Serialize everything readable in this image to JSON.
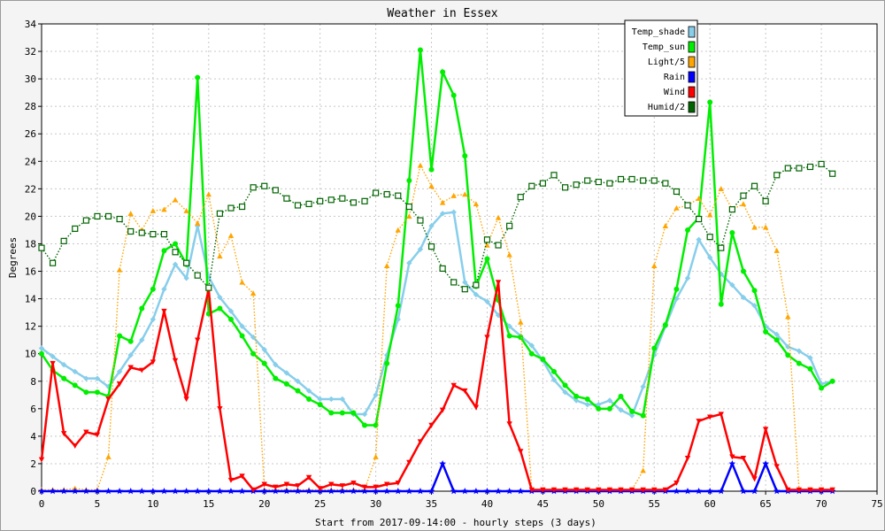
{
  "chart_data": {
    "type": "line",
    "title": "Weather in Essex",
    "xlabel": "Start from 2017-09-14:00 - hourly steps (3 days)",
    "ylabel": "Degrees",
    "xlim": [
      0,
      75
    ],
    "ylim": [
      0,
      34
    ],
    "x_ticks": [
      0,
      5,
      10,
      15,
      20,
      25,
      30,
      35,
      40,
      45,
      50,
      55,
      60,
      65,
      70,
      75
    ],
    "y_ticks": [
      0,
      2,
      4,
      6,
      8,
      10,
      12,
      14,
      16,
      18,
      20,
      22,
      24,
      26,
      28,
      30,
      32,
      34
    ],
    "grid": true,
    "legend_position": "top-right",
    "series": [
      {
        "name": "Temp_shade",
        "color": "#87ceeb",
        "marker": "diamond",
        "style": "solid",
        "values": [
          10.4,
          9.8,
          9.2,
          8.7,
          8.2,
          8.2,
          7.6,
          8.7,
          9.9,
          11.0,
          12.5,
          14.7,
          16.5,
          15.5,
          19.3,
          15.6,
          14.1,
          13.1,
          12.0,
          11.2,
          10.3,
          9.2,
          8.6,
          8.0,
          7.3,
          6.7,
          6.7,
          6.7,
          5.6,
          5.6,
          7.0,
          9.9,
          12.5,
          16.6,
          17.6,
          19.3,
          20.2,
          20.3,
          15.2,
          14.3,
          13.8,
          12.8,
          12.0,
          11.3,
          10.6,
          9.5,
          8.1,
          7.2,
          6.6,
          6.3,
          6.3,
          6.6,
          5.9,
          5.5,
          7.6,
          9.9,
          12.0,
          14.0,
          15.5,
          18.3,
          17.0,
          15.8,
          15.0,
          14.1,
          13.5,
          12.0,
          11.4,
          10.5,
          10.2,
          9.7,
          7.8,
          8.0
        ]
      },
      {
        "name": "Temp_sun",
        "color": "#00ee00",
        "marker": "circle",
        "style": "solid",
        "values": [
          10.0,
          8.8,
          8.2,
          7.7,
          7.2,
          7.2,
          6.9,
          11.3,
          10.9,
          13.3,
          14.7,
          17.5,
          18.0,
          16.5,
          30.1,
          12.9,
          13.3,
          12.5,
          11.3,
          10.0,
          9.3,
          8.2,
          7.8,
          7.3,
          6.7,
          6.3,
          5.7,
          5.7,
          5.7,
          4.8,
          4.8,
          9.3,
          13.5,
          22.6,
          32.1,
          23.4,
          30.5,
          28.8,
          24.4,
          14.9,
          16.9,
          13.9,
          11.3,
          11.2,
          10.0,
          9.6,
          8.7,
          7.7,
          6.9,
          6.7,
          6.0,
          6.0,
          6.9,
          5.8,
          5.5,
          10.4,
          12.1,
          14.7,
          19.0,
          19.9,
          28.3,
          13.6,
          18.8,
          16.0,
          14.6,
          11.6,
          11.0,
          9.9,
          9.3,
          8.9,
          7.5,
          8.0
        ]
      },
      {
        "name": "Light/5",
        "color": "#ffa500",
        "marker": "triangle",
        "style": "dotted",
        "values": [
          0.1,
          0.1,
          0.1,
          0.2,
          0.1,
          0.1,
          2.5,
          16.1,
          20.2,
          19.0,
          20.4,
          20.5,
          21.2,
          20.4,
          19.5,
          21.6,
          17.1,
          18.6,
          15.2,
          14.4,
          0.1,
          0.1,
          0.1,
          0.1,
          0.1,
          0.1,
          0.1,
          0.1,
          0.1,
          0.1,
          2.5,
          16.4,
          19.0,
          20.0,
          23.7,
          22.2,
          21.0,
          21.5,
          21.6,
          20.9,
          17.9,
          19.9,
          17.2,
          12.3,
          0.1,
          0.1,
          0.1,
          0.1,
          0.1,
          0.1,
          0.1,
          0.1,
          0.1,
          0.1,
          1.5,
          16.4,
          19.3,
          20.6,
          20.8,
          21.3,
          20.1,
          22.0,
          20.5,
          20.9,
          19.2,
          19.2,
          17.5,
          12.7,
          0.1,
          0.1,
          0.1,
          0.1
        ]
      },
      {
        "name": "Rain",
        "color": "#0000ff",
        "marker": "star",
        "style": "solid",
        "values": [
          0,
          0,
          0,
          0,
          0,
          0,
          0,
          0,
          0,
          0,
          0,
          0,
          0,
          0,
          0,
          0,
          0,
          0,
          0,
          0,
          0,
          0,
          0,
          0,
          0,
          0,
          0,
          0,
          0,
          0,
          0,
          0,
          0,
          0,
          0,
          0,
          2.0,
          0,
          0,
          0,
          0,
          0,
          0,
          0,
          0,
          0,
          0,
          0,
          0,
          0,
          0,
          0,
          0,
          0,
          0,
          0,
          0,
          0,
          0,
          0,
          0,
          0,
          2.0,
          0,
          0,
          2.0,
          0,
          0,
          0,
          0,
          0,
          0
        ]
      },
      {
        "name": "Wind",
        "color": "#ff0000",
        "marker": "triangle-down",
        "style": "solid",
        "values": [
          2.3,
          9.3,
          4.2,
          3.3,
          4.3,
          4.1,
          6.7,
          7.8,
          9.0,
          8.8,
          9.4,
          13.1,
          9.5,
          6.7,
          11.0,
          14.7,
          6.0,
          0.8,
          1.1,
          0.1,
          0.5,
          0.3,
          0.5,
          0.4,
          1.0,
          0.2,
          0.5,
          0.4,
          0.6,
          0.3,
          0.3,
          0.5,
          0.6,
          2.1,
          3.6,
          4.8,
          5.9,
          7.7,
          7.3,
          6.1,
          11.2,
          15.2,
          4.9,
          2.9,
          0.1,
          0.1,
          0.1,
          0.1,
          0.1,
          0.1,
          0.1,
          0.1,
          0.1,
          0.1,
          0.1,
          0.1,
          0.1,
          0.6,
          2.4,
          5.1,
          5.4,
          5.6,
          2.5,
          2.4,
          0.9,
          4.5,
          1.8,
          0.1,
          0.1,
          0.1,
          0.1,
          0.1
        ]
      },
      {
        "name": "Humid/2",
        "color": "#006400",
        "marker": "square",
        "style": "dotted",
        "values": [
          17.7,
          16.6,
          18.2,
          19.1,
          19.7,
          20.0,
          20.0,
          19.8,
          18.9,
          18.8,
          18.7,
          18.7,
          17.4,
          16.6,
          15.7,
          14.8,
          20.2,
          20.6,
          20.7,
          22.1,
          22.2,
          21.9,
          21.3,
          20.8,
          20.9,
          21.1,
          21.2,
          21.3,
          21.0,
          21.1,
          21.7,
          21.6,
          21.5,
          20.7,
          19.7,
          17.8,
          16.2,
          15.2,
          14.7,
          15.0,
          18.3,
          17.9,
          19.3,
          21.4,
          22.2,
          22.4,
          23.0,
          22.1,
          22.3,
          22.6,
          22.5,
          22.4,
          22.7,
          22.7,
          22.6,
          22.6,
          22.4,
          21.8,
          20.8,
          19.8,
          18.5,
          17.7,
          20.5,
          21.5,
          22.2,
          21.1,
          23.0,
          23.5,
          23.5,
          23.6,
          23.8,
          23.1
        ]
      }
    ]
  }
}
